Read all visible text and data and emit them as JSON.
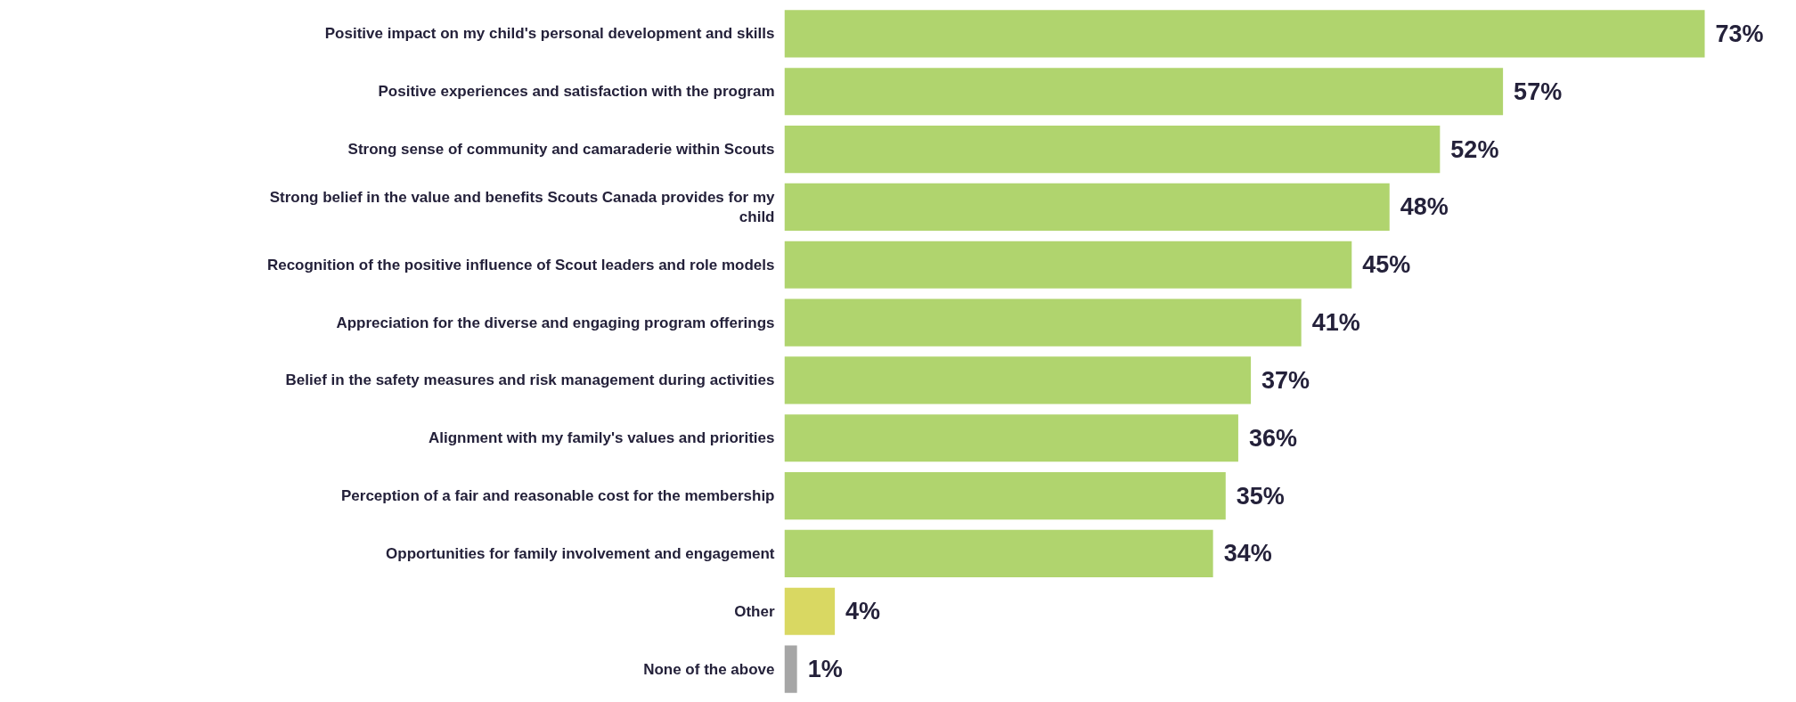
{
  "chart_data": {
    "type": "bar",
    "orientation": "horizontal",
    "categories": [
      "Positive impact on my child's personal development and skills",
      "Positive experiences and satisfaction with the program",
      "Strong sense of community and camaraderie within Scouts",
      "Strong belief in the value and benefits Scouts Canada provides for my child",
      "Recognition of the positive influence of Scout leaders and role models",
      "Appreciation for the diverse and engaging program offerings",
      "Belief in the safety measures and risk management during activities",
      "Alignment with my family's values and priorities",
      "Perception of a fair and reasonable cost for the membership",
      "Opportunities for family involvement and engagement",
      "Other",
      "None of the above"
    ],
    "values": [
      73,
      57,
      52,
      48,
      45,
      41,
      37,
      36,
      35,
      34,
      4,
      1
    ],
    "colors": [
      "#b0d46e",
      "#b0d46e",
      "#b0d46e",
      "#b0d46e",
      "#b0d46e",
      "#b0d46e",
      "#b0d46e",
      "#b0d46e",
      "#b0d46e",
      "#b0d46e",
      "#d9d862",
      "#a6a6a6"
    ],
    "value_labels": [
      "73%",
      "57%",
      "52%",
      "48%",
      "45%",
      "41%",
      "37%",
      "36%",
      "35%",
      "34%",
      "4%",
      "1%"
    ],
    "grid": false,
    "tick_labels": "y"
  }
}
